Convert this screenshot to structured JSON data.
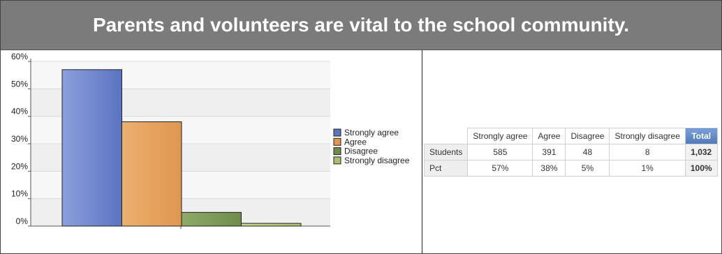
{
  "title": "Parents and volunteers are vital to the school community.",
  "chart_data": {
    "type": "bar",
    "categories": [
      "Strongly agree",
      "Agree",
      "Disagree",
      "Strongly disagree"
    ],
    "values": [
      57,
      38,
      5,
      1
    ],
    "ylim": [
      0,
      60
    ],
    "yticks": [
      "0%",
      "10%",
      "20%",
      "30%",
      "40%",
      "50%",
      "60%"
    ],
    "ytick_values": [
      0,
      10,
      20,
      30,
      40,
      50,
      60
    ],
    "colors": [
      "#5b74c0",
      "#e09650",
      "#6f8c4c",
      "#a8c070"
    ],
    "colors_light": [
      "#8aa0dc",
      "#ecb070",
      "#8eaa68",
      "#c4d890"
    ],
    "legend": [
      "Strongly agree",
      "Agree",
      "Disagree",
      "Strongly disagree"
    ],
    "legend_placement": "right",
    "grid": true
  },
  "table": {
    "columns": [
      "Strongly agree",
      "Agree",
      "Disagree",
      "Strongly disagree",
      "Total"
    ],
    "rows": [
      {
        "label": "Students",
        "cells": [
          "585",
          "391",
          "48",
          "8",
          "1,032"
        ]
      },
      {
        "label": "Pct",
        "cells": [
          "57%",
          "38%",
          "5%",
          "1%",
          "100%"
        ]
      }
    ]
  }
}
